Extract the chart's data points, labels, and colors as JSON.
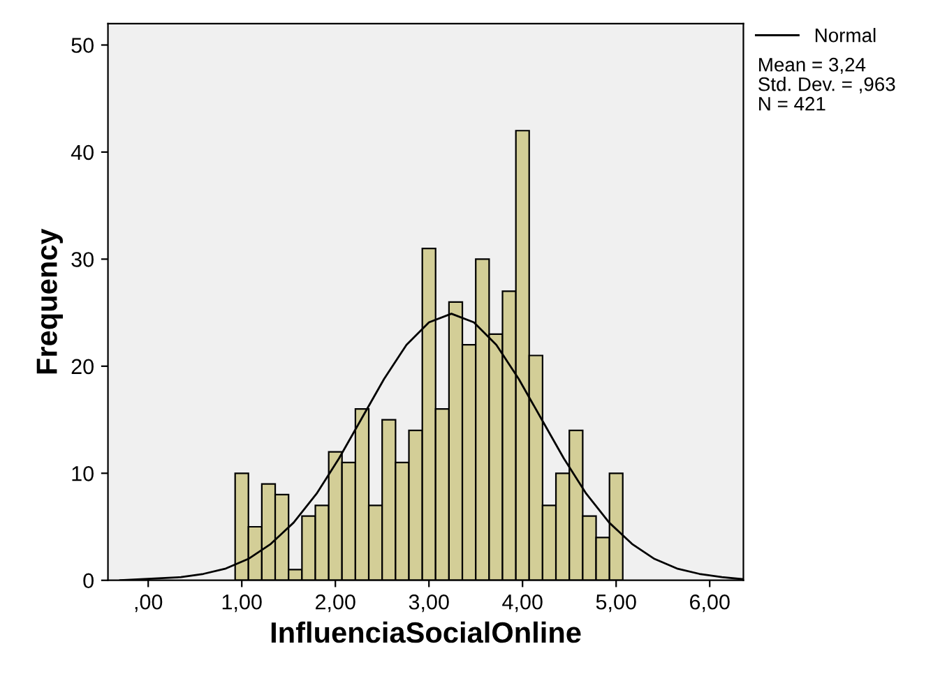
{
  "chart_data": {
    "type": "histogram",
    "xlabel": "InfluenciaSocialOnline",
    "ylabel": "Frequency",
    "series": [
      {
        "color": "#d3ce97",
        "bins": [
          0.929,
          1.071,
          1.214,
          1.357,
          1.5,
          1.643,
          1.786,
          1.929,
          2.071,
          2.214,
          2.357,
          2.5,
          2.643,
          2.786,
          2.929,
          3.071,
          3.214,
          3.357,
          3.5,
          3.643,
          3.786,
          3.929,
          4.071,
          4.214,
          4.357,
          4.5,
          4.643,
          4.786,
          4.929,
          5.071
        ],
        "values": [
          10,
          5,
          9,
          8,
          1,
          6,
          7,
          12,
          11,
          16,
          7,
          15,
          11,
          14,
          31,
          16,
          26,
          22,
          30,
          23,
          27,
          42,
          21,
          7,
          10,
          14,
          6,
          4,
          10
        ]
      },
      {
        "type": "line",
        "name": "Normal",
        "color": "#000000",
        "x": [
          -0.3,
          0.35,
          0.59,
          0.83,
          1.07,
          1.31,
          1.555,
          1.8,
          2.04,
          2.28,
          2.52,
          2.76,
          3.0,
          3.24,
          3.48,
          3.72,
          3.96,
          4.2,
          4.44,
          4.68,
          4.925,
          5.17,
          5.41,
          5.65,
          5.89,
          6.13,
          6.36
        ],
        "values": [
          0.0,
          0.3,
          0.6,
          1.1,
          2.0,
          3.4,
          5.4,
          8.1,
          11.4,
          15.1,
          18.8,
          22.0,
          24.1,
          24.9,
          24.1,
          22.0,
          18.8,
          15.1,
          11.4,
          8.1,
          5.4,
          3.4,
          2.0,
          1.1,
          0.6,
          0.3,
          0.1
        ]
      }
    ],
    "xlim": [
      -0.43,
      6.36
    ],
    "ylim": [
      0,
      52
    ],
    "xticks": [
      {
        "value": 0,
        "label": ",00"
      },
      {
        "value": 1,
        "label": "1,00"
      },
      {
        "value": 2,
        "label": "2,00"
      },
      {
        "value": 3,
        "label": "3,00"
      },
      {
        "value": 4,
        "label": "4,00"
      },
      {
        "value": 5,
        "label": "5,00"
      },
      {
        "value": 6,
        "label": "6,00"
      }
    ],
    "yticks": [
      0,
      10,
      20,
      30,
      40,
      50
    ],
    "grid": false,
    "legend": "top right",
    "annotations": [
      "Mean = 3,24",
      "Std. Dev. = ,963",
      "N = 421"
    ]
  }
}
